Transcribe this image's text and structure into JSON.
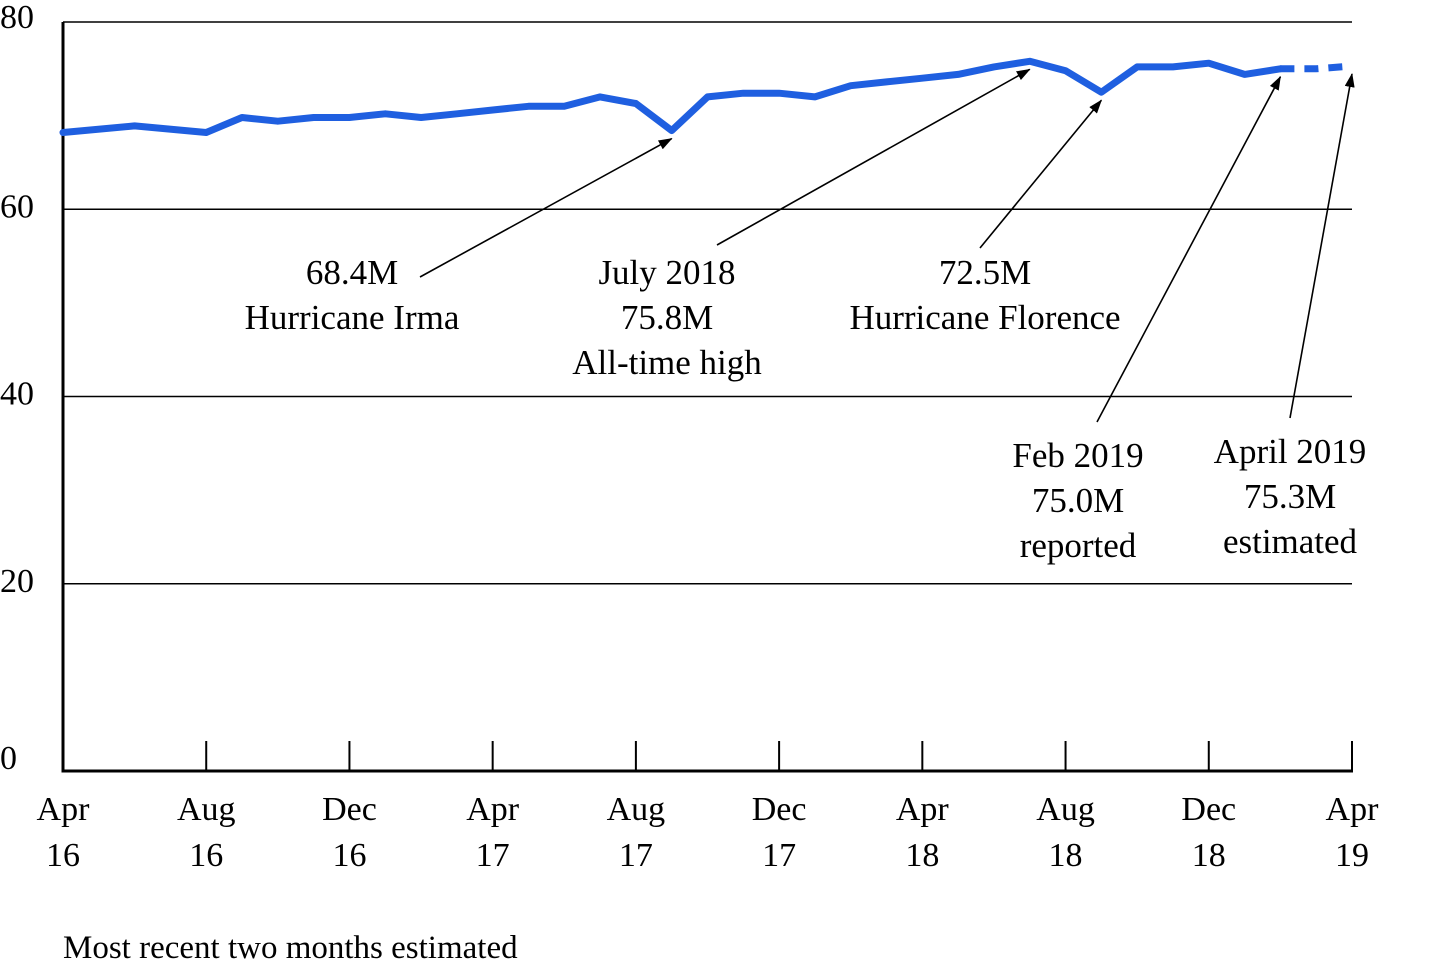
{
  "chart_data": {
    "type": "line",
    "title": "",
    "xlabel": "",
    "ylabel": "",
    "ylim": [
      0,
      80
    ],
    "yticks": [
      0,
      20,
      40,
      60,
      80
    ],
    "x_tick_labels": [
      {
        "month": "Apr",
        "year": "16"
      },
      {
        "month": "Aug",
        "year": "16"
      },
      {
        "month": "Dec",
        "year": "16"
      },
      {
        "month": "Apr",
        "year": "17"
      },
      {
        "month": "Aug",
        "year": "17"
      },
      {
        "month": "Dec",
        "year": "17"
      },
      {
        "month": "Apr",
        "year": "18"
      },
      {
        "month": "Aug",
        "year": "18"
      },
      {
        "month": "Dec",
        "year": "18"
      },
      {
        "month": "Apr",
        "year": "19"
      }
    ],
    "grid": true,
    "series_color": "#1f5fe0",
    "series": [
      {
        "name": "",
        "x": [
          "2016-04",
          "2016-06",
          "2016-08",
          "2016-09",
          "2016-10",
          "2016-11",
          "2016-12",
          "2017-01",
          "2017-02",
          "2017-03",
          "2017-04",
          "2017-05",
          "2017-06",
          "2017-07",
          "2017-08",
          "2017-09",
          "2017-10",
          "2017-11",
          "2017-12",
          "2018-01",
          "2018-02",
          "2018-03",
          "2018-04",
          "2018-05",
          "2018-06",
          "2018-07",
          "2018-08",
          "2018-09",
          "2018-10",
          "2018-11",
          "2018-12",
          "2019-01",
          "2019-02"
        ],
        "values": [
          68.2,
          68.9,
          68.2,
          69.8,
          69.4,
          69.8,
          69.8,
          70.2,
          69.8,
          70.2,
          70.6,
          71.0,
          71.0,
          72.0,
          71.3,
          68.4,
          72.0,
          72.4,
          72.4,
          72.0,
          73.2,
          73.6,
          74.0,
          74.4,
          75.2,
          75.8,
          74.8,
          72.5,
          75.2,
          75.2,
          75.6,
          74.4,
          75.0
        ],
        "estimated": {
          "x": [
            "2019-02",
            "2019-03",
            "2019-04"
          ],
          "values": [
            75.0,
            75.0,
            75.3
          ]
        }
      }
    ],
    "annotations": [
      {
        "lines": [
          "68.4M",
          "Hurricane Irma"
        ],
        "x": "2017-09",
        "y": 68.4
      },
      {
        "lines": [
          "July 2018",
          "75.8M",
          "All-time high"
        ],
        "x": "2018-07",
        "y": 75.8
      },
      {
        "lines": [
          "72.5M",
          "Hurricane Florence"
        ],
        "x": "2018-09",
        "y": 72.5
      },
      {
        "lines": [
          "Feb 2019",
          "75.0M",
          "reported"
        ],
        "x": "2019-02",
        "y": 75.0
      },
      {
        "lines": [
          "April 2019",
          "75.3M",
          "estimated"
        ],
        "x": "2019-04",
        "y": 75.3
      }
    ],
    "footnote": "Most recent two months estimated"
  }
}
